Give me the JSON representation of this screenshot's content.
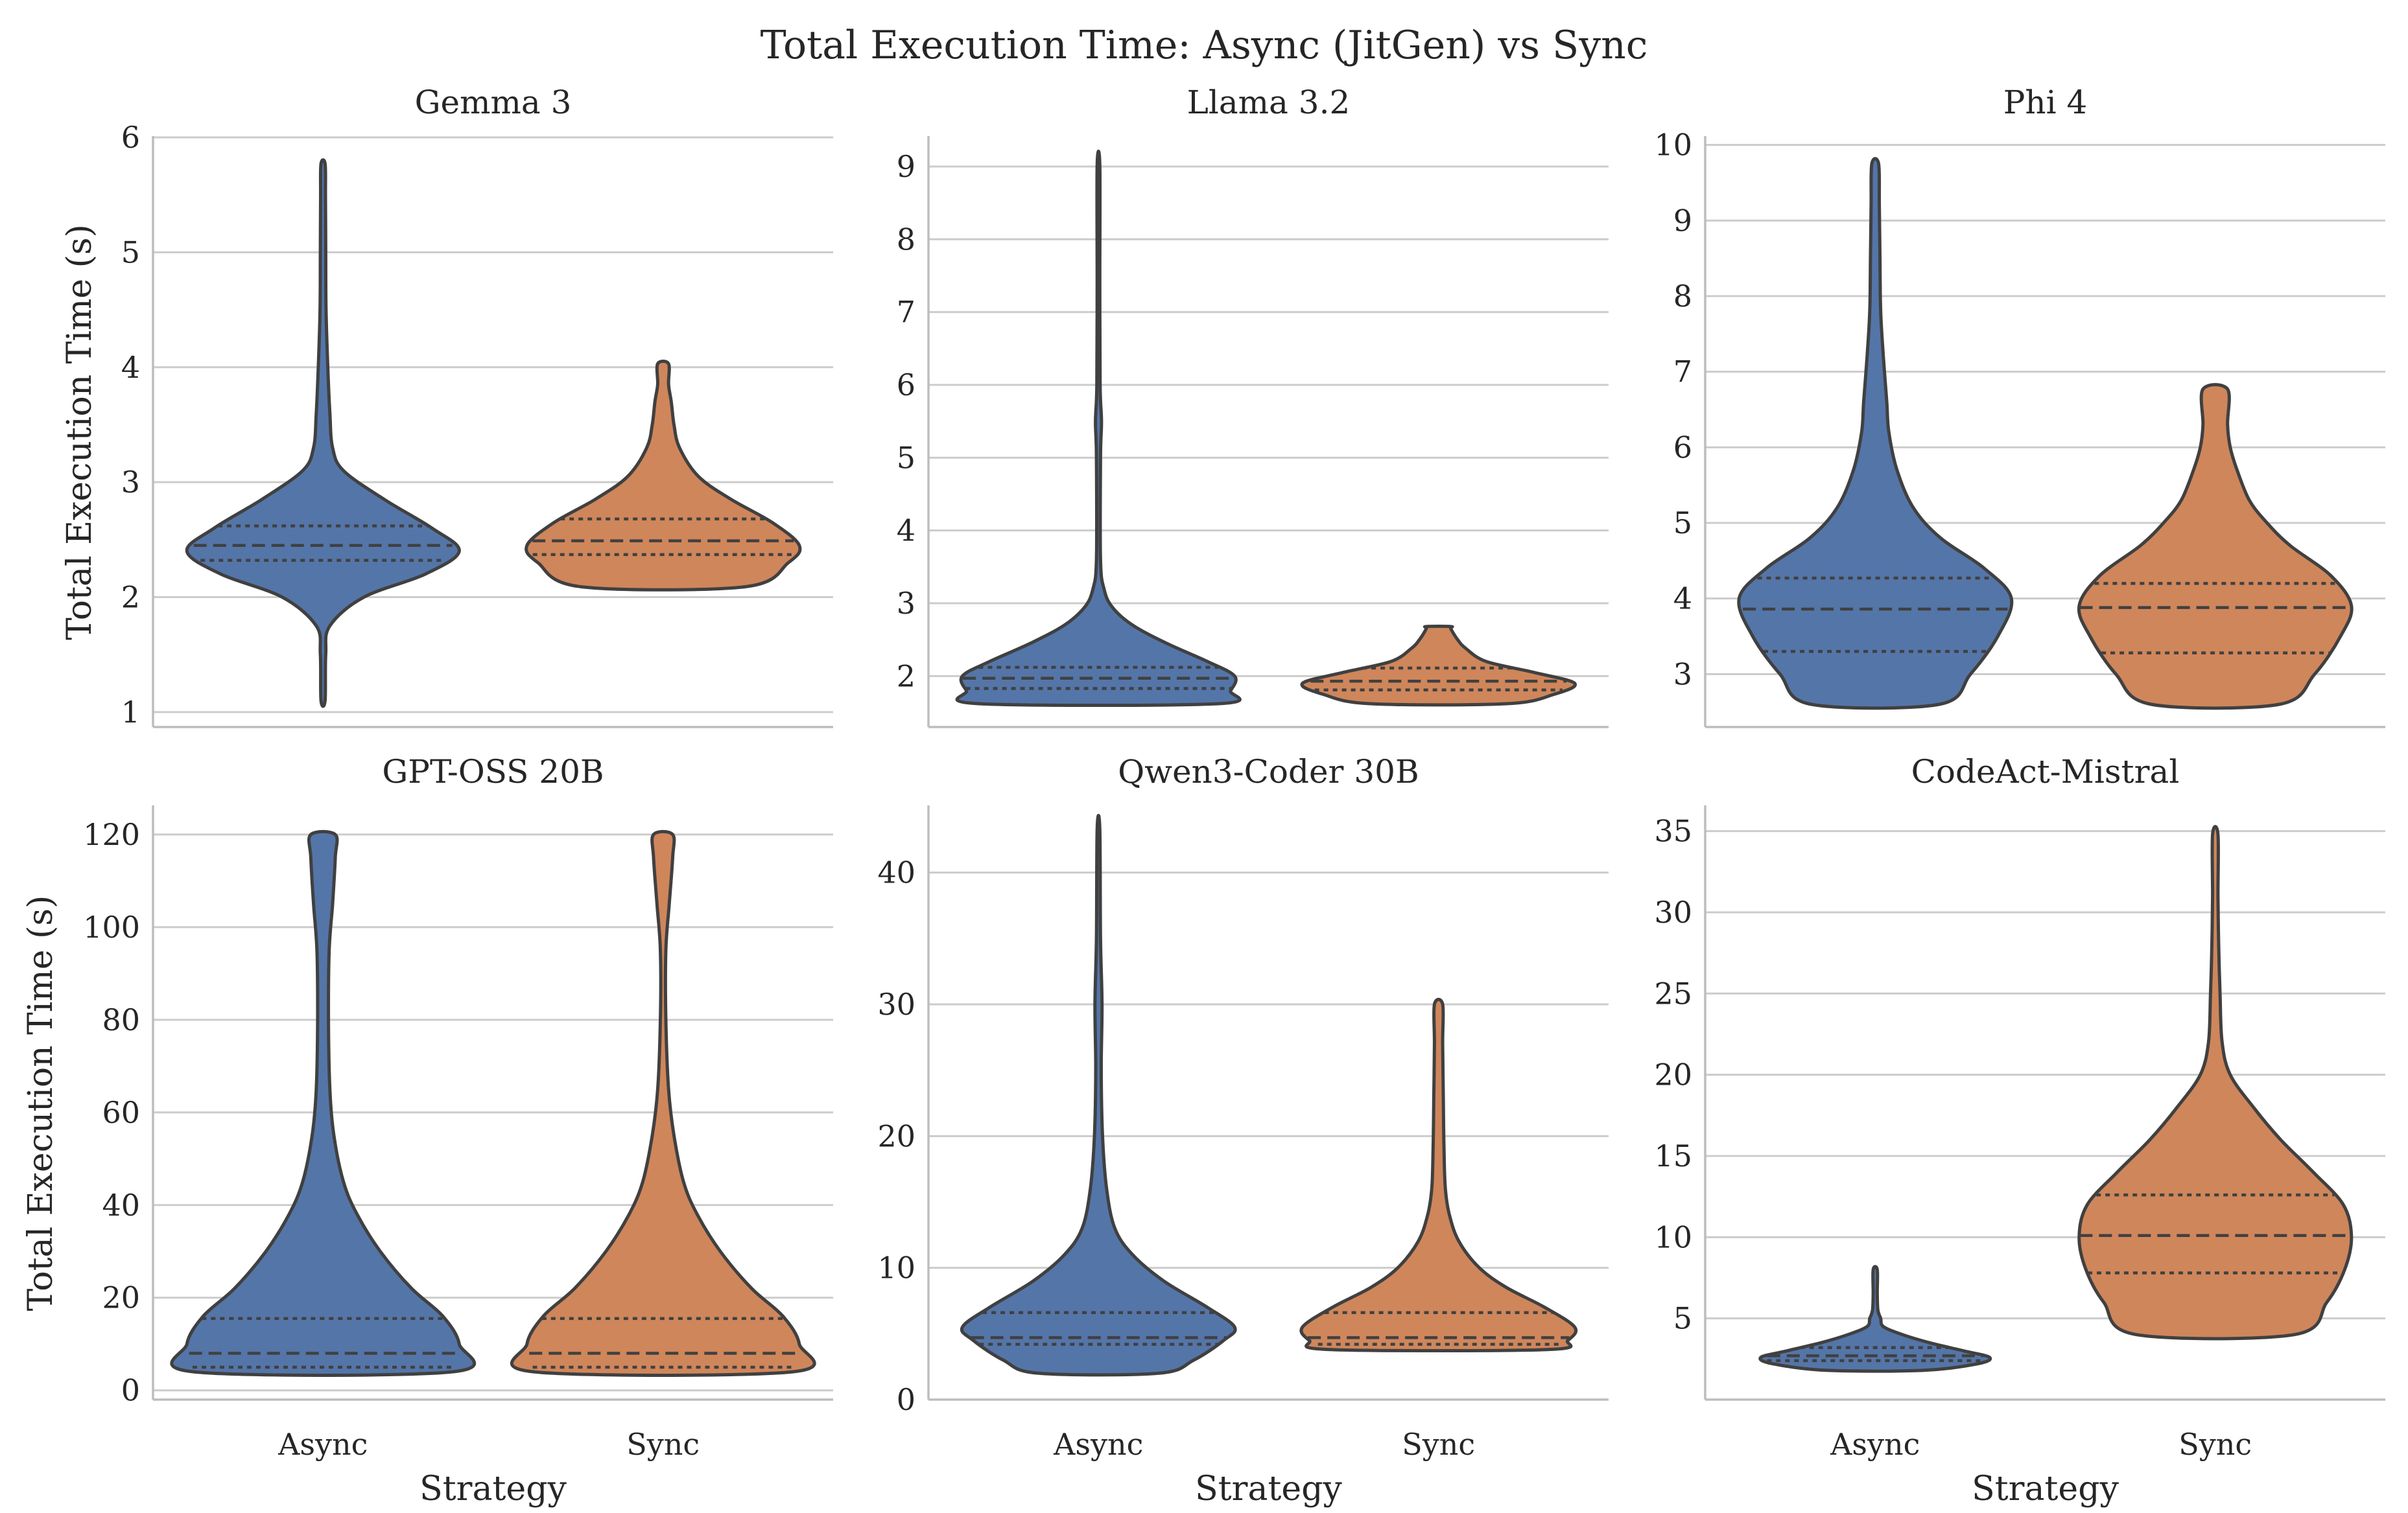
{
  "title": "Total Execution Time: Async (JitGen) vs Sync",
  "colors": {
    "Async": "#5475a8",
    "Sync": "#cf865b"
  },
  "chart_data": [
    {
      "type": "violin",
      "title": "Gemma 3",
      "xlabel": "",
      "ylabel": "Total Execution Time (s)",
      "categories": [
        "Async",
        "Sync"
      ],
      "ylim": [
        0.87,
        6.0
      ],
      "yticks": [
        1,
        2,
        3,
        4,
        5,
        6
      ],
      "series": [
        {
          "category": "Async",
          "min": 1.1,
          "max": 5.77,
          "q1": 2.32,
          "median": 2.45,
          "q3": 2.62,
          "density": [
            [
              1.1,
              0.015
            ],
            [
              1.5,
              0.02
            ],
            [
              1.75,
              0.05
            ],
            [
              2.0,
              0.3
            ],
            [
              2.2,
              0.75
            ],
            [
              2.4,
              1.0
            ],
            [
              2.6,
              0.8
            ],
            [
              2.85,
              0.45
            ],
            [
              3.1,
              0.15
            ],
            [
              3.3,
              0.07
            ],
            [
              3.6,
              0.05
            ],
            [
              4.0,
              0.035
            ],
            [
              4.5,
              0.022
            ],
            [
              5.0,
              0.02
            ],
            [
              5.5,
              0.018
            ],
            [
              5.77,
              0.015
            ]
          ]
        },
        {
          "category": "Sync",
          "min": 2.09,
          "max": 4.03,
          "q1": 2.37,
          "median": 2.49,
          "q3": 2.68,
          "density": [
            [
              2.09,
              0.6
            ],
            [
              2.3,
              0.92
            ],
            [
              2.45,
              1.0
            ],
            [
              2.65,
              0.8
            ],
            [
              2.85,
              0.5
            ],
            [
              3.05,
              0.26
            ],
            [
              3.3,
              0.12
            ],
            [
              3.5,
              0.08
            ],
            [
              3.7,
              0.06
            ],
            [
              3.85,
              0.04
            ],
            [
              4.03,
              0.04
            ]
          ]
        }
      ]
    },
    {
      "type": "violin",
      "title": "Llama 3.2",
      "xlabel": "",
      "ylabel": "",
      "categories": [
        "Async",
        "Sync"
      ],
      "ylim": [
        1.3,
        9.4
      ],
      "yticks": [
        2,
        3,
        4,
        5,
        6,
        7,
        8,
        9
      ],
      "series": [
        {
          "category": "Async",
          "min": 1.62,
          "max": 9.02,
          "q1": 1.83,
          "median": 1.97,
          "q3": 2.12,
          "density": [
            [
              1.62,
              0.88
            ],
            [
              1.8,
              0.97
            ],
            [
              2.0,
              1.0
            ],
            [
              2.2,
              0.8
            ],
            [
              2.45,
              0.5
            ],
            [
              2.7,
              0.25
            ],
            [
              2.95,
              0.1
            ],
            [
              3.2,
              0.04
            ],
            [
              3.6,
              0.015
            ],
            [
              5.0,
              0.015
            ],
            [
              5.5,
              0.022
            ],
            [
              6.0,
              0.012
            ],
            [
              7.5,
              0.01
            ],
            [
              9.02,
              0.01
            ]
          ]
        },
        {
          "category": "Sync",
          "min": 1.62,
          "max": 2.68,
          "q1": 1.81,
          "median": 1.93,
          "q3": 2.11,
          "density": [
            [
              1.62,
              0.5
            ],
            [
              1.75,
              0.85
            ],
            [
              1.9,
              1.0
            ],
            [
              2.05,
              0.7
            ],
            [
              2.2,
              0.35
            ],
            [
              2.38,
              0.2
            ],
            [
              2.5,
              0.14
            ],
            [
              2.65,
              0.09
            ],
            [
              2.68,
              0.09
            ]
          ]
        }
      ]
    },
    {
      "type": "violin",
      "title": "Phi 4",
      "xlabel": "",
      "ylabel": "",
      "categories": [
        "Async",
        "Sync"
      ],
      "ylim": [
        2.3,
        10.1
      ],
      "yticks": [
        3,
        4,
        5,
        6,
        7,
        8,
        9,
        10
      ],
      "series": [
        {
          "category": "Async",
          "min": 2.6,
          "max": 9.75,
          "q1": 3.3,
          "median": 3.86,
          "q3": 4.27,
          "density": [
            [
              2.6,
              0.47
            ],
            [
              3.0,
              0.7
            ],
            [
              3.5,
              0.9
            ],
            [
              4.0,
              1.0
            ],
            [
              4.4,
              0.8
            ],
            [
              4.8,
              0.48
            ],
            [
              5.2,
              0.28
            ],
            [
              5.7,
              0.16
            ],
            [
              6.2,
              0.1
            ],
            [
              6.6,
              0.085
            ],
            [
              7.2,
              0.06
            ],
            [
              7.8,
              0.04
            ],
            [
              8.5,
              0.035
            ],
            [
              9.2,
              0.03
            ],
            [
              9.75,
              0.025
            ]
          ]
        },
        {
          "category": "Sync",
          "min": 2.6,
          "max": 6.77,
          "q1": 3.28,
          "median": 3.88,
          "q3": 4.2,
          "density": [
            [
              2.6,
              0.47
            ],
            [
              3.0,
              0.73
            ],
            [
              3.5,
              0.92
            ],
            [
              3.9,
              1.0
            ],
            [
              4.3,
              0.85
            ],
            [
              4.7,
              0.55
            ],
            [
              5.0,
              0.38
            ],
            [
              5.3,
              0.25
            ],
            [
              5.7,
              0.16
            ],
            [
              6.0,
              0.11
            ],
            [
              6.3,
              0.09
            ],
            [
              6.77,
              0.09
            ]
          ]
        }
      ]
    },
    {
      "type": "violin",
      "title": "GPT-OSS 20B",
      "xlabel": "Strategy",
      "ylabel": "Total Execution Time (s)",
      "categories": [
        "Async",
        "Sync"
      ],
      "ylim": [
        -2.0,
        126.0
      ],
      "yticks": [
        0,
        20,
        40,
        60,
        80,
        100,
        120
      ],
      "series": [
        {
          "category": "Async",
          "min": 4.0,
          "max": 120.0,
          "q1": 5.0,
          "median": 8.0,
          "q3": 15.5,
          "density": [
            [
              4.0,
              0.95
            ],
            [
              10.0,
              1.0
            ],
            [
              16.0,
              0.88
            ],
            [
              22.0,
              0.65
            ],
            [
              30.0,
              0.42
            ],
            [
              38.0,
              0.25
            ],
            [
              45.0,
              0.15
            ],
            [
              55.0,
              0.08
            ],
            [
              65.0,
              0.05
            ],
            [
              80.0,
              0.04
            ],
            [
              95.0,
              0.045
            ],
            [
              105.0,
              0.07
            ],
            [
              115.0,
              0.09
            ],
            [
              120.0,
              0.09
            ]
          ]
        },
        {
          "category": "Sync",
          "min": 4.0,
          "max": 120.0,
          "q1": 5.0,
          "median": 8.0,
          "q3": 15.5,
          "density": [
            [
              4.0,
              0.95
            ],
            [
              10.0,
              1.0
            ],
            [
              16.0,
              0.88
            ],
            [
              22.0,
              0.65
            ],
            [
              30.0,
              0.42
            ],
            [
              38.0,
              0.25
            ],
            [
              45.0,
              0.15
            ],
            [
              55.0,
              0.08
            ],
            [
              65.0,
              0.04
            ],
            [
              80.0,
              0.02
            ],
            [
              95.0,
              0.02
            ],
            [
              105.0,
              0.045
            ],
            [
              115.0,
              0.07
            ],
            [
              120.0,
              0.07
            ]
          ]
        }
      ]
    },
    {
      "type": "violin",
      "title": "Qwen3-Coder 30B",
      "xlabel": "Strategy",
      "ylabel": "",
      "categories": [
        "Async",
        "Sync"
      ],
      "ylim": [
        0.0,
        45.0
      ],
      "yticks": [
        0,
        10,
        20,
        30,
        40
      ],
      "series": [
        {
          "category": "Async",
          "min": 2.0,
          "max": 43.3,
          "q1": 4.2,
          "median": 4.7,
          "q3": 6.6,
          "density": [
            [
              2.0,
              0.44
            ],
            [
              3.0,
              0.7
            ],
            [
              4.5,
              0.92
            ],
            [
              5.5,
              1.0
            ],
            [
              7.0,
              0.8
            ],
            [
              9.0,
              0.48
            ],
            [
              11.0,
              0.25
            ],
            [
              13.0,
              0.12
            ],
            [
              16.0,
              0.06
            ],
            [
              20.0,
              0.03
            ],
            [
              25.0,
              0.02
            ],
            [
              30.0,
              0.026
            ],
            [
              35.0,
              0.015
            ],
            [
              43.3,
              0.01
            ]
          ]
        },
        {
          "category": "Sync",
          "min": 3.8,
          "max": 30.0,
          "q1": 4.2,
          "median": 4.7,
          "q3": 6.6,
          "density": [
            [
              3.8,
              0.8
            ],
            [
              4.5,
              0.95
            ],
            [
              5.5,
              1.0
            ],
            [
              7.0,
              0.78
            ],
            [
              8.5,
              0.5
            ],
            [
              10.0,
              0.3
            ],
            [
              12.0,
              0.15
            ],
            [
              14.0,
              0.08
            ],
            [
              16.0,
              0.05
            ],
            [
              19.0,
              0.04
            ],
            [
              23.0,
              0.035
            ],
            [
              27.0,
              0.03
            ],
            [
              30.0,
              0.03
            ]
          ]
        }
      ]
    },
    {
      "type": "violin",
      "title": "CodeAct-Mistral",
      "xlabel": "Strategy",
      "ylabel": "",
      "categories": [
        "Async",
        "Sync"
      ],
      "ylim": [
        0.0,
        36.5
      ],
      "yticks": [
        5,
        10,
        15,
        20,
        25,
        30,
        35
      ],
      "series": [
        {
          "category": "Async",
          "min": 1.8,
          "max": 8.0,
          "q1": 2.4,
          "median": 2.7,
          "q3": 3.2,
          "density": [
            [
              1.8,
              0.35
            ],
            [
              2.2,
              0.75
            ],
            [
              2.6,
              0.84
            ],
            [
              3.0,
              0.65
            ],
            [
              3.5,
              0.4
            ],
            [
              4.0,
              0.2
            ],
            [
              4.5,
              0.06
            ],
            [
              5.0,
              0.04
            ],
            [
              5.5,
              0.02
            ],
            [
              6.5,
              0.015
            ],
            [
              8.0,
              0.015
            ]
          ]
        },
        {
          "category": "Sync",
          "min": 4.0,
          "max": 34.8,
          "q1": 7.8,
          "median": 10.1,
          "q3": 12.6,
          "density": [
            [
              4.0,
              0.58
            ],
            [
              6.0,
              0.82
            ],
            [
              8.0,
              0.95
            ],
            [
              10.0,
              1.0
            ],
            [
              12.0,
              0.94
            ],
            [
              14.0,
              0.72
            ],
            [
              16.0,
              0.48
            ],
            [
              18.0,
              0.28
            ],
            [
              20.0,
              0.11
            ],
            [
              22.0,
              0.05
            ],
            [
              25.0,
              0.035
            ],
            [
              28.0,
              0.025
            ],
            [
              31.0,
              0.02
            ],
            [
              34.8,
              0.02
            ]
          ]
        }
      ]
    }
  ]
}
